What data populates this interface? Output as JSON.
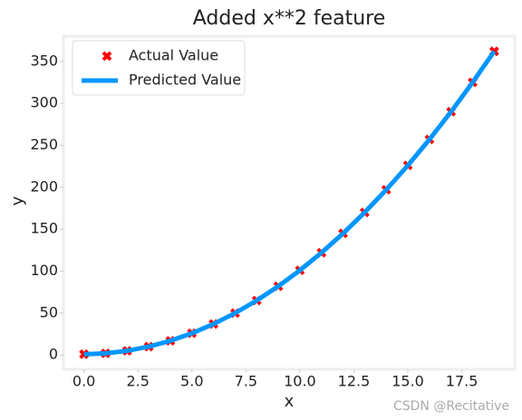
{
  "chart_data": {
    "type": "scatter-line",
    "title": "Added x**2 feature",
    "xlabel": "x",
    "ylabel": "y",
    "x": [
      0,
      1,
      2,
      3,
      4,
      5,
      6,
      7,
      8,
      9,
      10,
      11,
      12,
      13,
      14,
      15,
      16,
      17,
      18,
      19
    ],
    "series": [
      {
        "name": "Actual Value",
        "kind": "scatter",
        "color": "#ff0000",
        "values": [
          1,
          2,
          5,
          10,
          17,
          26,
          37,
          50,
          65,
          82,
          101,
          122,
          145,
          170,
          197,
          226,
          257,
          290,
          325,
          362
        ]
      },
      {
        "name": "Predicted Value",
        "kind": "line",
        "color": "#0096ff",
        "values": [
          1,
          2,
          5,
          10,
          17,
          26,
          37,
          50,
          65,
          82,
          101,
          122,
          145,
          170,
          197,
          226,
          257,
          290,
          325,
          362
        ]
      }
    ],
    "xlim": [
      -0.95,
      19.95
    ],
    "ylim": [
      -17,
      380
    ],
    "xticks": [
      {
        "value": 0,
        "label": "0.0"
      },
      {
        "value": 2.5,
        "label": "2.5"
      },
      {
        "value": 5,
        "label": "5.0"
      },
      {
        "value": 7.5,
        "label": "7.5"
      },
      {
        "value": 10,
        "label": "10.0"
      },
      {
        "value": 12.5,
        "label": "12.5"
      },
      {
        "value": 15,
        "label": "15.0"
      },
      {
        "value": 17.5,
        "label": "17.5"
      }
    ],
    "yticks": [
      0,
      50,
      100,
      150,
      200,
      250,
      300,
      350
    ],
    "legend": "upper-left",
    "watermark": "CSDN @Recitative"
  }
}
